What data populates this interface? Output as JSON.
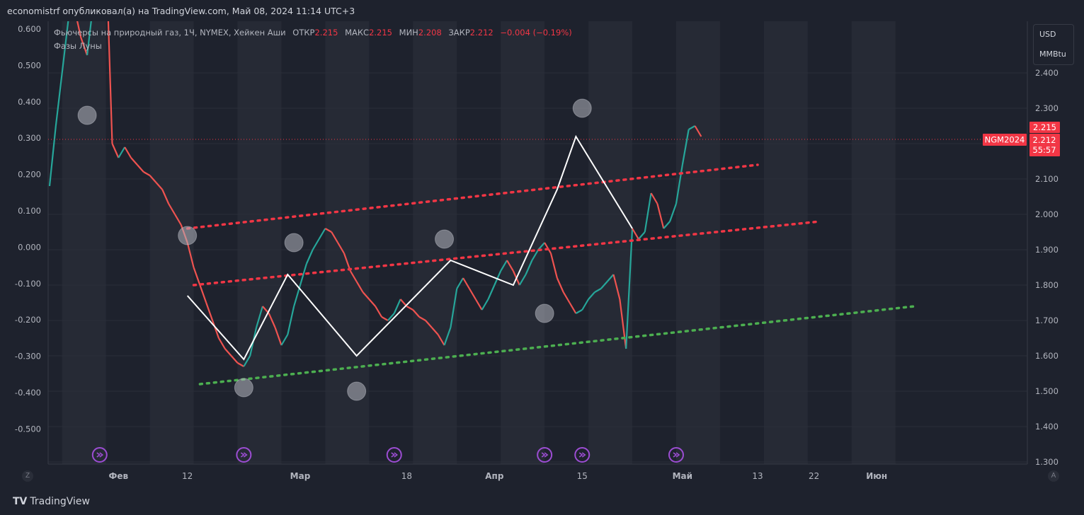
{
  "publisher_line": "economistrf опубликовал(а) на TradingView.com, Май 08, 2024 11:14 UTC+3",
  "legend": {
    "symbol": "Фьючерсы на природный газ, 1Ч, NYMEX, Хейкен Аши",
    "open_label": "ОТКР",
    "open": "2.215",
    "high_label": "МАКС",
    "high": "2.215",
    "low_label": "МИН",
    "low": "2.208",
    "close_label": "ЗАКР",
    "close": "2.212",
    "change": "−0.004 (−0.19%)",
    "indicator": "Фазы Луны"
  },
  "units": {
    "currency": "USD",
    "unit": "MMBtu"
  },
  "price_tags": {
    "high": "2.215",
    "symbol": "NGM2024",
    "close": "2.212",
    "countdown": "55:57"
  },
  "footer": {
    "brand": "TradingView",
    "left_corner": "Z",
    "right_corner": "A"
  },
  "colors": {
    "background": "#1e222d",
    "band": "#262a35",
    "up": "#26a69a",
    "down": "#ef5350",
    "red_dots": "#f23645",
    "green_dots": "#4caf50",
    "zigzag": "#ffffff",
    "moon_event": "#9c4dd3"
  },
  "chart_data": {
    "type": "line",
    "title": "Фьючерсы на природный газ, 1Ч, NYMEX, Хейкен Аши",
    "right_axis": {
      "ticks": [
        "2.400",
        "2.300",
        "2.200",
        "2.100",
        "2.000",
        "1.900",
        "1.800",
        "1.700",
        "1.600",
        "1.500",
        "1.400",
        "1.300"
      ],
      "ylim": [
        1.3,
        2.4
      ]
    },
    "left_axis": {
      "ticks": [
        "0.600",
        "0.500",
        "0.400",
        "0.300",
        "0.200",
        "0.100",
        "0.000",
        "-0.100",
        "-0.200",
        "-0.300",
        "-0.400",
        "-0.500"
      ]
    },
    "x_ticks": [
      {
        "label": "Фев",
        "day": 31,
        "bold": true
      },
      {
        "label": "12",
        "day": 42,
        "bold": false
      },
      {
        "label": "Мар",
        "day": 60,
        "bold": true
      },
      {
        "label": "18",
        "day": 77,
        "bold": false
      },
      {
        "label": "Апр",
        "day": 91,
        "bold": true
      },
      {
        "label": "15",
        "day": 105,
        "bold": false
      },
      {
        "label": "Май",
        "day": 121,
        "bold": true
      },
      {
        "label": "13",
        "day": 133,
        "bold": false
      },
      {
        "label": "22",
        "day": 142,
        "bold": false
      },
      {
        "label": "Июн",
        "day": 152,
        "bold": true
      }
    ],
    "x_unit": "days since Jan 1 2024",
    "price_path": [
      [
        20,
        2.08
      ],
      [
        21,
        2.25
      ],
      [
        22,
        2.4
      ],
      [
        23,
        2.55
      ],
      [
        24,
        2.58
      ],
      [
        25,
        2.5
      ],
      [
        26,
        2.45
      ],
      [
        27,
        2.6
      ],
      [
        28,
        2.7
      ],
      [
        29,
        2.75
      ],
      [
        30,
        2.2
      ],
      [
        31,
        2.16
      ],
      [
        32,
        2.19
      ],
      [
        33,
        2.16
      ],
      [
        34,
        2.14
      ],
      [
        35,
        2.12
      ],
      [
        36,
        2.11
      ],
      [
        37,
        2.09
      ],
      [
        38,
        2.07
      ],
      [
        39,
        2.03
      ],
      [
        40,
        2.0
      ],
      [
        41,
        1.97
      ],
      [
        42,
        1.92
      ],
      [
        43,
        1.85
      ],
      [
        44,
        1.8
      ],
      [
        45,
        1.75
      ],
      [
        46,
        1.7
      ],
      [
        47,
        1.65
      ],
      [
        48,
        1.62
      ],
      [
        49,
        1.6
      ],
      [
        50,
        1.58
      ],
      [
        51,
        1.57
      ],
      [
        52,
        1.6
      ],
      [
        53,
        1.68
      ],
      [
        54,
        1.74
      ],
      [
        55,
        1.72
      ],
      [
        56,
        1.68
      ],
      [
        57,
        1.63
      ],
      [
        58,
        1.66
      ],
      [
        59,
        1.74
      ],
      [
        60,
        1.8
      ],
      [
        61,
        1.86
      ],
      [
        62,
        1.9
      ],
      [
        63,
        1.93
      ],
      [
        64,
        1.96
      ],
      [
        65,
        1.95
      ],
      [
        66,
        1.92
      ],
      [
        67,
        1.89
      ],
      [
        68,
        1.84
      ],
      [
        69,
        1.81
      ],
      [
        70,
        1.78
      ],
      [
        71,
        1.76
      ],
      [
        72,
        1.74
      ],
      [
        73,
        1.71
      ],
      [
        74,
        1.7
      ],
      [
        75,
        1.72
      ],
      [
        76,
        1.76
      ],
      [
        77,
        1.74
      ],
      [
        78,
        1.73
      ],
      [
        79,
        1.71
      ],
      [
        80,
        1.7
      ],
      [
        81,
        1.68
      ],
      [
        82,
        1.66
      ],
      [
        83,
        1.63
      ],
      [
        84,
        1.68
      ],
      [
        85,
        1.79
      ],
      [
        86,
        1.82
      ],
      [
        87,
        1.79
      ],
      [
        88,
        1.76
      ],
      [
        89,
        1.73
      ],
      [
        90,
        1.76
      ],
      [
        91,
        1.8
      ],
      [
        92,
        1.84
      ],
      [
        93,
        1.87
      ],
      [
        94,
        1.84
      ],
      [
        95,
        1.8
      ],
      [
        96,
        1.83
      ],
      [
        97,
        1.87
      ],
      [
        98,
        1.9
      ],
      [
        99,
        1.92
      ],
      [
        100,
        1.89
      ],
      [
        101,
        1.82
      ],
      [
        102,
        1.78
      ],
      [
        103,
        1.75
      ],
      [
        104,
        1.72
      ],
      [
        105,
        1.73
      ],
      [
        106,
        1.76
      ],
      [
        107,
        1.78
      ],
      [
        108,
        1.79
      ],
      [
        109,
        1.81
      ],
      [
        110,
        1.83
      ],
      [
        111,
        1.76
      ],
      [
        112,
        1.62
      ],
      [
        113,
        1.96
      ],
      [
        114,
        1.93
      ],
      [
        115,
        1.95
      ],
      [
        116,
        2.06
      ],
      [
        117,
        2.03
      ],
      [
        118,
        1.96
      ],
      [
        119,
        1.98
      ],
      [
        120,
        2.03
      ],
      [
        121,
        2.14
      ],
      [
        122,
        2.24
      ],
      [
        123,
        2.25
      ],
      [
        124,
        2.22
      ]
    ],
    "zigzag": [
      [
        42,
        1.77
      ],
      [
        51,
        1.59
      ],
      [
        58,
        1.83
      ],
      [
        69,
        1.6
      ],
      [
        84,
        1.87
      ],
      [
        94,
        1.8
      ],
      [
        101,
        2.07
      ],
      [
        104,
        2.22
      ],
      [
        113,
        1.96
      ]
    ],
    "red_dotted_lines": [
      {
        "from": [
          42,
          1.96
        ],
        "to": [
          133,
          2.14
        ]
      },
      {
        "from": [
          43,
          1.8
        ],
        "to": [
          143,
          1.98
        ]
      }
    ],
    "green_dotted_line": {
      "from": [
        44,
        1.52
      ],
      "to": [
        158,
        1.74
      ]
    },
    "moon_circles": [
      {
        "day": 26,
        "price": 2.28
      },
      {
        "day": 42,
        "price": 1.94
      },
      {
        "day": 51,
        "price": 1.51
      },
      {
        "day": 59,
        "price": 1.92
      },
      {
        "day": 69,
        "price": 1.5
      },
      {
        "day": 83,
        "price": 1.93
      },
      {
        "day": 99,
        "price": 1.72
      },
      {
        "day": 105,
        "price": 2.3
      }
    ],
    "moon_icons": [
      {
        "day": 28,
        "kind": "new"
      },
      {
        "day": 51,
        "kind": "new"
      },
      {
        "day": 75,
        "kind": "new"
      },
      {
        "day": 99,
        "kind": "new"
      },
      {
        "day": 105,
        "kind": "full"
      },
      {
        "day": 120,
        "kind": "new"
      }
    ],
    "last_price": 2.212
  }
}
